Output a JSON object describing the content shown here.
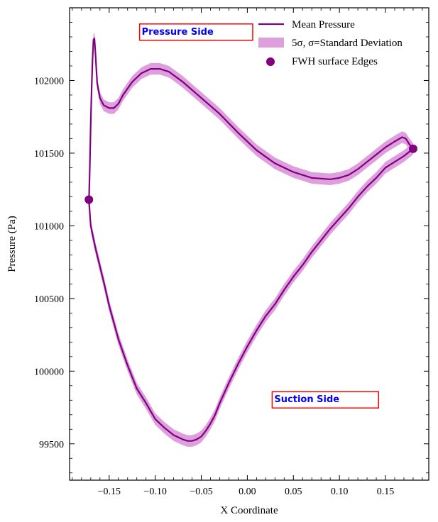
{
  "chart_data": {
    "type": "line",
    "xlabel": "X Coordinate",
    "ylabel": "Pressure (Pa)",
    "xlim": [
      -0.193,
      0.197
    ],
    "ylim": [
      99250,
      102500
    ],
    "x_ticks": [
      -0.15,
      -0.1,
      -0.05,
      0.0,
      0.05,
      0.1,
      0.15
    ],
    "x_tick_labels": [
      "−0.15",
      "−0.10",
      "−0.05",
      "0.00",
      "0.05",
      "0.10",
      "0.15"
    ],
    "y_ticks": [
      99500,
      100000,
      100500,
      101000,
      101500,
      102000
    ],
    "y_tick_labels": [
      "99500",
      "100000",
      "100500",
      "101000",
      "101500",
      "102000"
    ],
    "grid": false,
    "legend_position": "top-right",
    "colors": {
      "mean": "#800080",
      "band": "#dda0dd",
      "annotation_box": "#ff0000",
      "annotation_text": "#0000ff"
    },
    "series": [
      {
        "name": "Mean Pressure",
        "kind": "line",
        "segments": [
          {
            "id": "pressure-side",
            "x": [
              -0.172,
              -0.171,
              -0.17,
              -0.169,
              -0.168,
              -0.167,
              -0.166,
              -0.165,
              -0.163,
              -0.16,
              -0.156,
              -0.15,
              -0.145,
              -0.14,
              -0.135,
              -0.125,
              -0.115,
              -0.105,
              -0.095,
              -0.085,
              -0.07,
              -0.05,
              -0.03,
              -0.01,
              0.01,
              0.03,
              0.05,
              0.07,
              0.09,
              0.1,
              0.11,
              0.12,
              0.13,
              0.14,
              0.15,
              0.16,
              0.168,
              0.172,
              0.176,
              0.18
            ],
            "y": [
              101150,
              101400,
              101700,
              101950,
              102150,
              102280,
              102290,
              102200,
              101980,
              101880,
              101830,
              101810,
              101810,
              101840,
              101900,
              101990,
              102050,
              102080,
              102080,
              102060,
              101990,
              101880,
              101770,
              101640,
              101520,
              101430,
              101370,
              101330,
              101320,
              101330,
              101350,
              101390,
              101440,
              101490,
              101540,
              101580,
              101610,
              101600,
              101560,
              101530
            ]
          },
          {
            "id": "suction-side",
            "x": [
              -0.172,
              -0.17,
              -0.165,
              -0.16,
              -0.155,
              -0.15,
              -0.14,
              -0.13,
              -0.12,
              -0.11,
              -0.1,
              -0.09,
              -0.08,
              -0.07,
              -0.065,
              -0.06,
              -0.055,
              -0.05,
              -0.045,
              -0.04,
              -0.035,
              -0.03,
              -0.02,
              -0.01,
              0.0,
              0.01,
              0.02,
              0.03,
              0.04,
              0.05,
              0.06,
              0.07,
              0.08,
              0.09,
              0.1,
              0.11,
              0.12,
              0.13,
              0.14,
              0.15,
              0.16,
              0.17,
              0.18
            ],
            "y": [
              101180,
              101000,
              100850,
              100720,
              100590,
              100450,
              100220,
              100040,
              99880,
              99780,
              99670,
              99610,
              99560,
              99530,
              99520,
              99520,
              99530,
              99550,
              99590,
              99640,
              99700,
              99780,
              99920,
              100050,
              100170,
              100280,
              100380,
              100460,
              100560,
              100650,
              100730,
              100820,
              100900,
              100980,
              101050,
              101120,
              101200,
              101270,
              101330,
              101400,
              101440,
              101480,
              101530
            ]
          }
        ]
      },
      {
        "name": "5σ, σ=Standard Deviation",
        "kind": "band",
        "half_width": 40
      },
      {
        "name": "FWH surface Edges",
        "kind": "scatter",
        "points": [
          {
            "x": -0.172,
            "y": 101180
          },
          {
            "x": 0.18,
            "y": 101530
          }
        ]
      }
    ],
    "legend": [
      {
        "label": "Mean Pressure",
        "swatch": "line"
      },
      {
        "label": "5σ, σ=Standard Deviation",
        "swatch": "band"
      },
      {
        "label": "FWH surface Edges",
        "swatch": "dot"
      }
    ],
    "annotations": [
      {
        "text": "Pressure Side",
        "x": -0.117,
        "y": 102340
      },
      {
        "text": "Suction Side",
        "x": 0.027,
        "y": 99810
      }
    ]
  }
}
